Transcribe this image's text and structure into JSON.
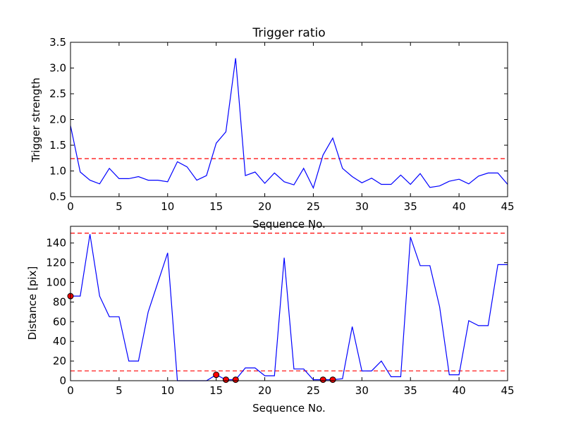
{
  "chart_data": [
    {
      "type": "line",
      "title": "Trigger ratio",
      "xlabel": "Sequence No.",
      "ylabel": "Trigger strength",
      "xlim": [
        0,
        45
      ],
      "ylim": [
        0.5,
        3.5
      ],
      "xticks": [
        0,
        5,
        10,
        15,
        20,
        25,
        30,
        35,
        40,
        45
      ],
      "yticks": [
        0.5,
        1.0,
        1.5,
        2.0,
        2.5,
        3.0,
        3.5
      ],
      "ytick_labels": [
        "0.5",
        "1.0",
        "1.5",
        "2.0",
        "2.5",
        "3.0",
        "3.5"
      ],
      "grid": false,
      "line_color": "#0000ff",
      "threshold_color": "#ff0000",
      "x": [
        0,
        1,
        2,
        3,
        4,
        5,
        6,
        7,
        8,
        9,
        10,
        11,
        12,
        13,
        14,
        15,
        16,
        17,
        18,
        19,
        20,
        21,
        22,
        23,
        24,
        25,
        26,
        27,
        28,
        29,
        30,
        31,
        32,
        33,
        34,
        35,
        36,
        37,
        38,
        39,
        40,
        41,
        42,
        43,
        44,
        45
      ],
      "values": [
        1.88,
        0.98,
        0.82,
        0.75,
        1.05,
        0.85,
        0.85,
        0.89,
        0.82,
        0.82,
        0.79,
        1.18,
        1.08,
        0.82,
        0.91,
        1.54,
        1.76,
        3.19,
        0.91,
        0.98,
        0.76,
        0.96,
        0.79,
        0.73,
        1.05,
        0.67,
        1.31,
        1.64,
        1.05,
        0.89,
        0.77,
        0.86,
        0.74,
        0.74,
        0.92,
        0.74,
        0.95,
        0.68,
        0.71,
        0.8,
        0.84,
        0.75,
        0.9,
        0.96,
        0.96,
        0.74
      ],
      "threshold": 1.24
    },
    {
      "type": "line",
      "title": "",
      "xlabel": "Sequence No.",
      "ylabel": "Distance [pix]",
      "xlim": [
        0,
        45
      ],
      "ylim": [
        0,
        157
      ],
      "xticks": [
        0,
        5,
        10,
        15,
        20,
        25,
        30,
        35,
        40,
        45
      ],
      "yticks": [
        0,
        20,
        40,
        60,
        80,
        100,
        120,
        140
      ],
      "ytick_labels": [
        "0",
        "20",
        "40",
        "60",
        "80",
        "100",
        "120",
        "140"
      ],
      "grid": false,
      "line_color": "#0000ff",
      "threshold_color": "#ff0000",
      "marker_color": "#ff0000",
      "x": [
        0,
        1,
        2,
        3,
        4,
        5,
        6,
        7,
        8,
        9,
        10,
        11,
        12,
        13,
        14,
        15,
        16,
        17,
        18,
        19,
        20,
        21,
        22,
        23,
        24,
        25,
        26,
        27,
        28,
        29,
        30,
        31,
        32,
        33,
        34,
        35,
        36,
        37,
        38,
        39,
        40,
        41,
        42,
        43,
        44,
        45
      ],
      "values": [
        86,
        86,
        149,
        86,
        65,
        65,
        20,
        20,
        70,
        100,
        130,
        0,
        0,
        0,
        0,
        6,
        1,
        1,
        13,
        13,
        5,
        5,
        125,
        12,
        12,
        1,
        1,
        1,
        2,
        55,
        10,
        10,
        20,
        4,
        4,
        146,
        117,
        117,
        75,
        6,
        6,
        61,
        56,
        56,
        118,
        118
      ],
      "thresholds": [
        150,
        10
      ],
      "markers": [
        [
          0,
          86
        ],
        [
          15,
          6
        ],
        [
          16,
          1
        ],
        [
          17,
          1
        ],
        [
          26,
          1
        ],
        [
          27,
          1
        ]
      ]
    }
  ]
}
